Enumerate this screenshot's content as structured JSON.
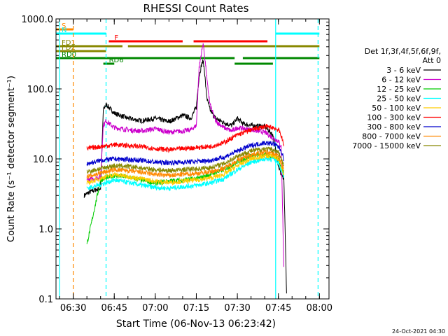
{
  "chart_data": {
    "type": "line",
    "title": "RHESSI Count Rates",
    "xlabel": "Start Time (06-Nov-13 06:23:42)",
    "ylabel": "Count Rate (s⁻¹ detector segment⁻¹)",
    "yscale": "log",
    "ylim": [
      0.1,
      1000
    ],
    "xlim": [
      "06:23:42",
      "08:03:30"
    ],
    "x_ticks": [
      "06:30",
      "06:45",
      "07:00",
      "07:15",
      "07:30",
      "07:45",
      "08:00"
    ],
    "y_ticks": [
      "0.1",
      "1.0",
      "10.0",
      "100.0",
      "1000.0"
    ],
    "legend_header": [
      "Det 1f,3f,4f,5f,6f,9f,",
      "Att 0"
    ],
    "legend_position": "right",
    "footer_date": "24-Oct-2021 04:30",
    "series": [
      {
        "name": "3 - 6 keV",
        "color": "#000000",
        "x": [
          "06:34:00",
          "06:35:00",
          "06:37:00",
          "06:40:00",
          "06:41:00",
          "06:42:00",
          "06:45:00",
          "06:50:00",
          "06:55:00",
          "07:00:00",
          "07:05:00",
          "07:10:00",
          "07:13:00",
          "07:15:00",
          "07:16:00",
          "07:17:00",
          "07:17:30",
          "07:18:00",
          "07:18:30",
          "07:19:00",
          "07:20:00",
          "07:22:00",
          "07:25:00",
          "07:28:00",
          "07:30:00",
          "07:32:00",
          "07:35:00",
          "07:40:00",
          "07:43:00",
          "07:45:00",
          "07:46:00",
          "07:47:00",
          "07:48:00"
        ],
        "y": [
          3.0,
          3.2,
          3.5,
          3.8,
          50,
          60,
          45,
          38,
          35,
          38,
          34,
          42,
          38,
          55,
          150,
          230,
          250,
          180,
          100,
          70,
          50,
          38,
          33,
          30,
          38,
          32,
          30,
          29,
          22,
          8,
          6,
          5,
          0.12
        ]
      },
      {
        "name": "6 - 12 keV",
        "color": "#cc00cc",
        "x": [
          "06:35:00",
          "06:40:00",
          "06:41:00",
          "06:42:00",
          "06:45:00",
          "06:50:00",
          "06:55:00",
          "07:00:00",
          "07:05:00",
          "07:10:00",
          "07:13:00",
          "07:15:00",
          "07:16:00",
          "07:17:00",
          "07:17:30",
          "07:18:00",
          "07:18:30",
          "07:19:00",
          "07:20:00",
          "07:22:00",
          "07:25:00",
          "07:28:00",
          "07:30:00",
          "07:35:00",
          "07:40:00",
          "07:43:00",
          "07:45:00",
          "07:46:00",
          "07:47:00"
        ],
        "y": [
          5,
          5.5,
          30,
          35,
          28,
          26,
          25,
          27,
          24,
          25,
          26,
          30,
          200,
          350,
          450,
          300,
          200,
          120,
          60,
          35,
          28,
          25,
          28,
          26,
          24,
          20,
          18,
          15,
          0.3
        ]
      },
      {
        "name": "12 - 25 keV",
        "color": "#00cc00",
        "x": [
          "06:35:00",
          "06:40:00",
          "06:45:00",
          "06:50:00",
          "06:55:00",
          "07:00:00",
          "07:05:00",
          "07:10:00",
          "07:15:00",
          "07:17:00",
          "07:18:00",
          "07:20:00",
          "07:25:00",
          "07:30:00",
          "07:35:00",
          "07:40:00",
          "07:43:00",
          "07:45:00",
          "07:46:00",
          "07:47:00"
        ],
        "y": [
          0.6,
          5.0,
          5.8,
          5.5,
          5.0,
          4.5,
          4.8,
          5.0,
          5.2,
          5.4,
          5.6,
          6.0,
          7.0,
          9.0,
          11,
          11.5,
          11,
          10,
          8,
          6
        ]
      },
      {
        "name": "25 - 50 keV",
        "color": "#00ffff",
        "x": [
          "06:35:00",
          "06:40:00",
          "06:45:00",
          "06:50:00",
          "06:55:00",
          "07:00:00",
          "07:05:00",
          "07:10:00",
          "07:15:00",
          "07:20:00",
          "07:25:00",
          "07:30:00",
          "07:35:00",
          "07:40:00",
          "07:43:00",
          "07:45:00",
          "07:46:00",
          "07:47:00"
        ],
        "y": [
          3.8,
          4.3,
          5.0,
          4.6,
          4.2,
          3.9,
          3.8,
          4.0,
          4.2,
          4.5,
          5.2,
          7.0,
          9.0,
          10,
          10,
          9,
          7,
          5.5
        ]
      },
      {
        "name": "50 - 100 keV",
        "color": "#ffcc00",
        "x": [
          "06:35:00",
          "06:40:00",
          "06:45:00",
          "06:50:00",
          "06:55:00",
          "07:00:00",
          "07:05:00",
          "07:10:00",
          "07:15:00",
          "07:20:00",
          "07:25:00",
          "07:30:00",
          "07:35:00",
          "07:40:00",
          "07:43:00",
          "07:45:00",
          "07:46:00",
          "07:47:00"
        ],
        "y": [
          4.5,
          5.3,
          6.0,
          5.6,
          5.2,
          4.8,
          4.6,
          4.8,
          5.0,
          5.3,
          6.0,
          8.0,
          10,
          11,
          11,
          10,
          8,
          6
        ]
      },
      {
        "name": "100 - 300 keV",
        "color": "#ff0000",
        "x": [
          "06:35:00",
          "06:40:00",
          "06:45:00",
          "06:50:00",
          "06:55:00",
          "07:00:00",
          "07:05:00",
          "07:10:00",
          "07:15:00",
          "07:20:00",
          "07:25:00",
          "07:30:00",
          "07:35:00",
          "07:40:00",
          "07:43:00",
          "07:45:00",
          "07:46:00",
          "07:47:00"
        ],
        "y": [
          14,
          15,
          16,
          15.5,
          15,
          14,
          13.5,
          14,
          14.5,
          15,
          17,
          22,
          26,
          29,
          28,
          26,
          22,
          15
        ]
      },
      {
        "name": "300 - 800 keV",
        "color": "#0000cc",
        "x": [
          "06:35:00",
          "06:40:00",
          "06:45:00",
          "06:50:00",
          "06:55:00",
          "07:00:00",
          "07:05:00",
          "07:10:00",
          "07:15:00",
          "07:20:00",
          "07:25:00",
          "07:30:00",
          "07:35:00",
          "07:40:00",
          "07:43:00",
          "07:45:00",
          "07:46:00",
          "07:47:00"
        ],
        "y": [
          8.5,
          9.5,
          10,
          9.8,
          9.5,
          9.0,
          8.8,
          9.0,
          9.2,
          9.5,
          10.5,
          13,
          15.5,
          17,
          16.5,
          15,
          13,
          10
        ]
      },
      {
        "name": "800 - 7000 keV",
        "color": "#ff8800",
        "x": [
          "06:35:00",
          "06:40:00",
          "06:45:00",
          "06:50:00",
          "06:55:00",
          "07:00:00",
          "07:05:00",
          "07:10:00",
          "07:15:00",
          "07:20:00",
          "07:25:00",
          "07:30:00",
          "07:35:00",
          "07:40:00",
          "07:43:00",
          "07:45:00",
          "07:46:00",
          "07:47:00"
        ],
        "y": [
          5.5,
          6.3,
          7.0,
          6.8,
          6.4,
          6.0,
          5.8,
          6.0,
          6.2,
          6.5,
          7.3,
          9.5,
          11.5,
          12.5,
          12,
          11,
          9,
          7
        ]
      },
      {
        "name": "7000 - 15000 keV",
        "color": "#888800",
        "x": [
          "06:35:00",
          "06:40:00",
          "06:45:00",
          "06:50:00",
          "06:55:00",
          "07:00:00",
          "07:05:00",
          "07:10:00",
          "07:15:00",
          "07:20:00",
          "07:25:00",
          "07:30:00",
          "07:35:00",
          "07:40:00",
          "07:43:00",
          "07:45:00",
          "07:46:00",
          "07:47:00"
        ],
        "y": [
          6.5,
          7.3,
          8.0,
          7.8,
          7.4,
          7.0,
          6.8,
          7.0,
          7.2,
          7.5,
          8.5,
          11,
          13,
          14,
          13.5,
          12.5,
          10,
          8
        ]
      }
    ],
    "flag_bars": [
      {
        "label": "S",
        "color": "#ff8800",
        "start": "06:23:42",
        "end": "06:30:00"
      },
      {
        "label": "N",
        "color": "#00ffff",
        "start": "06:23:42",
        "end": "06:42:00"
      },
      {
        "label": "N",
        "color": "#00ffff",
        "start": "07:44:00",
        "end": "08:00:00"
      },
      {
        "label": "F",
        "color": "#ff0000",
        "start": "06:43:00",
        "end": "07:10:00"
      },
      {
        "label": "F",
        "color": "#ff0000",
        "start": "07:14:00",
        "end": "07:41:00"
      },
      {
        "label": "FD1",
        "color": "#888800",
        "start": "06:23:42",
        "end": "06:48:00"
      },
      {
        "label": "FD1",
        "color": "#888800",
        "start": "06:50:00",
        "end": "08:00:00"
      },
      {
        "label": "FD2",
        "color": "#888800",
        "start": "06:23:42",
        "end": "06:42:00"
      },
      {
        "label": "RD0",
        "color": "#008800",
        "start": "06:23:42",
        "end": "07:29:00"
      },
      {
        "label": "RD0",
        "color": "#008800",
        "start": "07:32:00",
        "end": "08:00:00"
      },
      {
        "label": "RD6",
        "color": "#008800",
        "start": "06:41:00",
        "end": "06:45:00"
      },
      {
        "label": "RD6",
        "color": "#008800",
        "start": "07:29:00",
        "end": "07:43:00"
      }
    ],
    "vertical_markers": [
      {
        "time": "06:25:00",
        "color": "#00ffff",
        "style": "solid"
      },
      {
        "time": "06:30:00",
        "color": "#ff8800",
        "style": "dashed"
      },
      {
        "time": "06:42:00",
        "color": "#00ffff",
        "style": "dashed"
      },
      {
        "time": "07:44:00",
        "color": "#00ffff",
        "style": "solid"
      },
      {
        "time": "07:59:30",
        "color": "#00ffff",
        "style": "dashed"
      }
    ]
  }
}
